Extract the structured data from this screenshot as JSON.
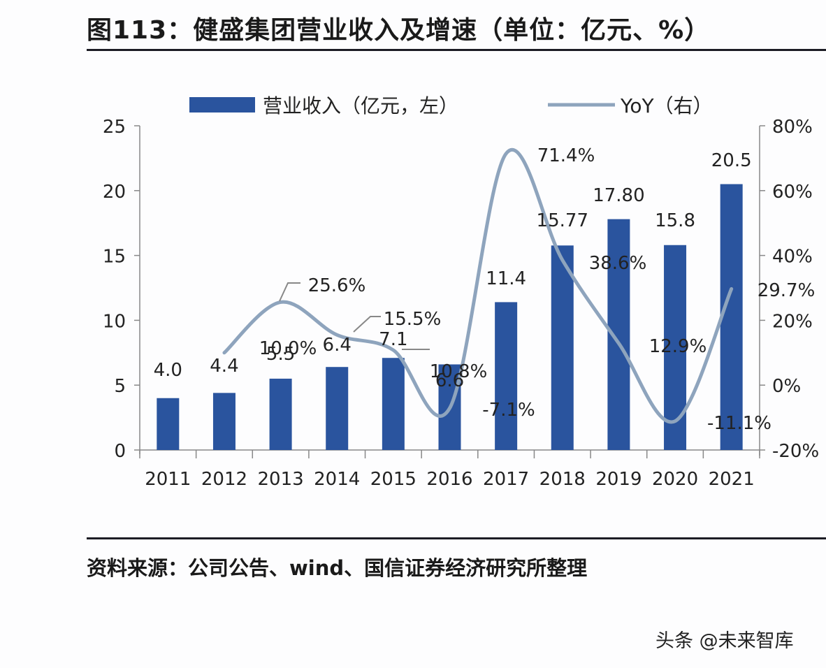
{
  "header": {
    "title": "图113：健盛集团营业收入及增速（单位：亿元、%）"
  },
  "legend": {
    "bar_label": "营业收入（亿元，左）",
    "line_label": "YoY（右）"
  },
  "footer": {
    "source": "资料来源：公司公告、wind、国信证券经济研究所整理",
    "watermark": "头条 @未来智库"
  },
  "colors": {
    "bar": "#2a549e",
    "line": "#8ea4bd",
    "axis": "#888888",
    "text": "#222222"
  },
  "chart_data": {
    "type": "bar+line",
    "title": "图113：健盛集团营业收入及增速（单位：亿元、%）",
    "categories": [
      "2011",
      "2012",
      "2013",
      "2014",
      "2015",
      "2016",
      "2017",
      "2018",
      "2019",
      "2020",
      "2021"
    ],
    "series": [
      {
        "name": "营业收入（亿元，左）",
        "type": "bar",
        "axis": "left",
        "values": [
          4.0,
          4.4,
          5.5,
          6.4,
          7.1,
          6.6,
          11.4,
          15.77,
          17.8,
          15.8,
          20.5
        ],
        "labels": [
          "4.0",
          "4.4",
          "5.5",
          "6.4",
          "7.1",
          "6.6",
          "11.4",
          "15.77",
          "17.80",
          "15.8",
          "20.5"
        ]
      },
      {
        "name": "YoY（右）",
        "type": "line",
        "axis": "right",
        "values": [
          null,
          10.0,
          25.6,
          15.5,
          10.8,
          -7.1,
          71.4,
          38.6,
          12.9,
          -11.1,
          29.7
        ],
        "labels": [
          "",
          "10.0%",
          "25.6%",
          "15.5%",
          "10.8%",
          "-7.1%",
          "71.4%",
          "38.6%",
          "12.9%",
          "-11.1%",
          "29.7%"
        ]
      }
    ],
    "left_axis": {
      "ticks": [
        "0",
        "5",
        "10",
        "15",
        "20",
        "25"
      ],
      "ylim": [
        0,
        25
      ]
    },
    "right_axis": {
      "ticks": [
        "-20%",
        "0%",
        "20%",
        "40%",
        "60%",
        "80%"
      ],
      "ylim": [
        -20,
        80
      ]
    },
    "xlabel": "",
    "ylabel": "",
    "legend_position": "top",
    "grid": false
  }
}
